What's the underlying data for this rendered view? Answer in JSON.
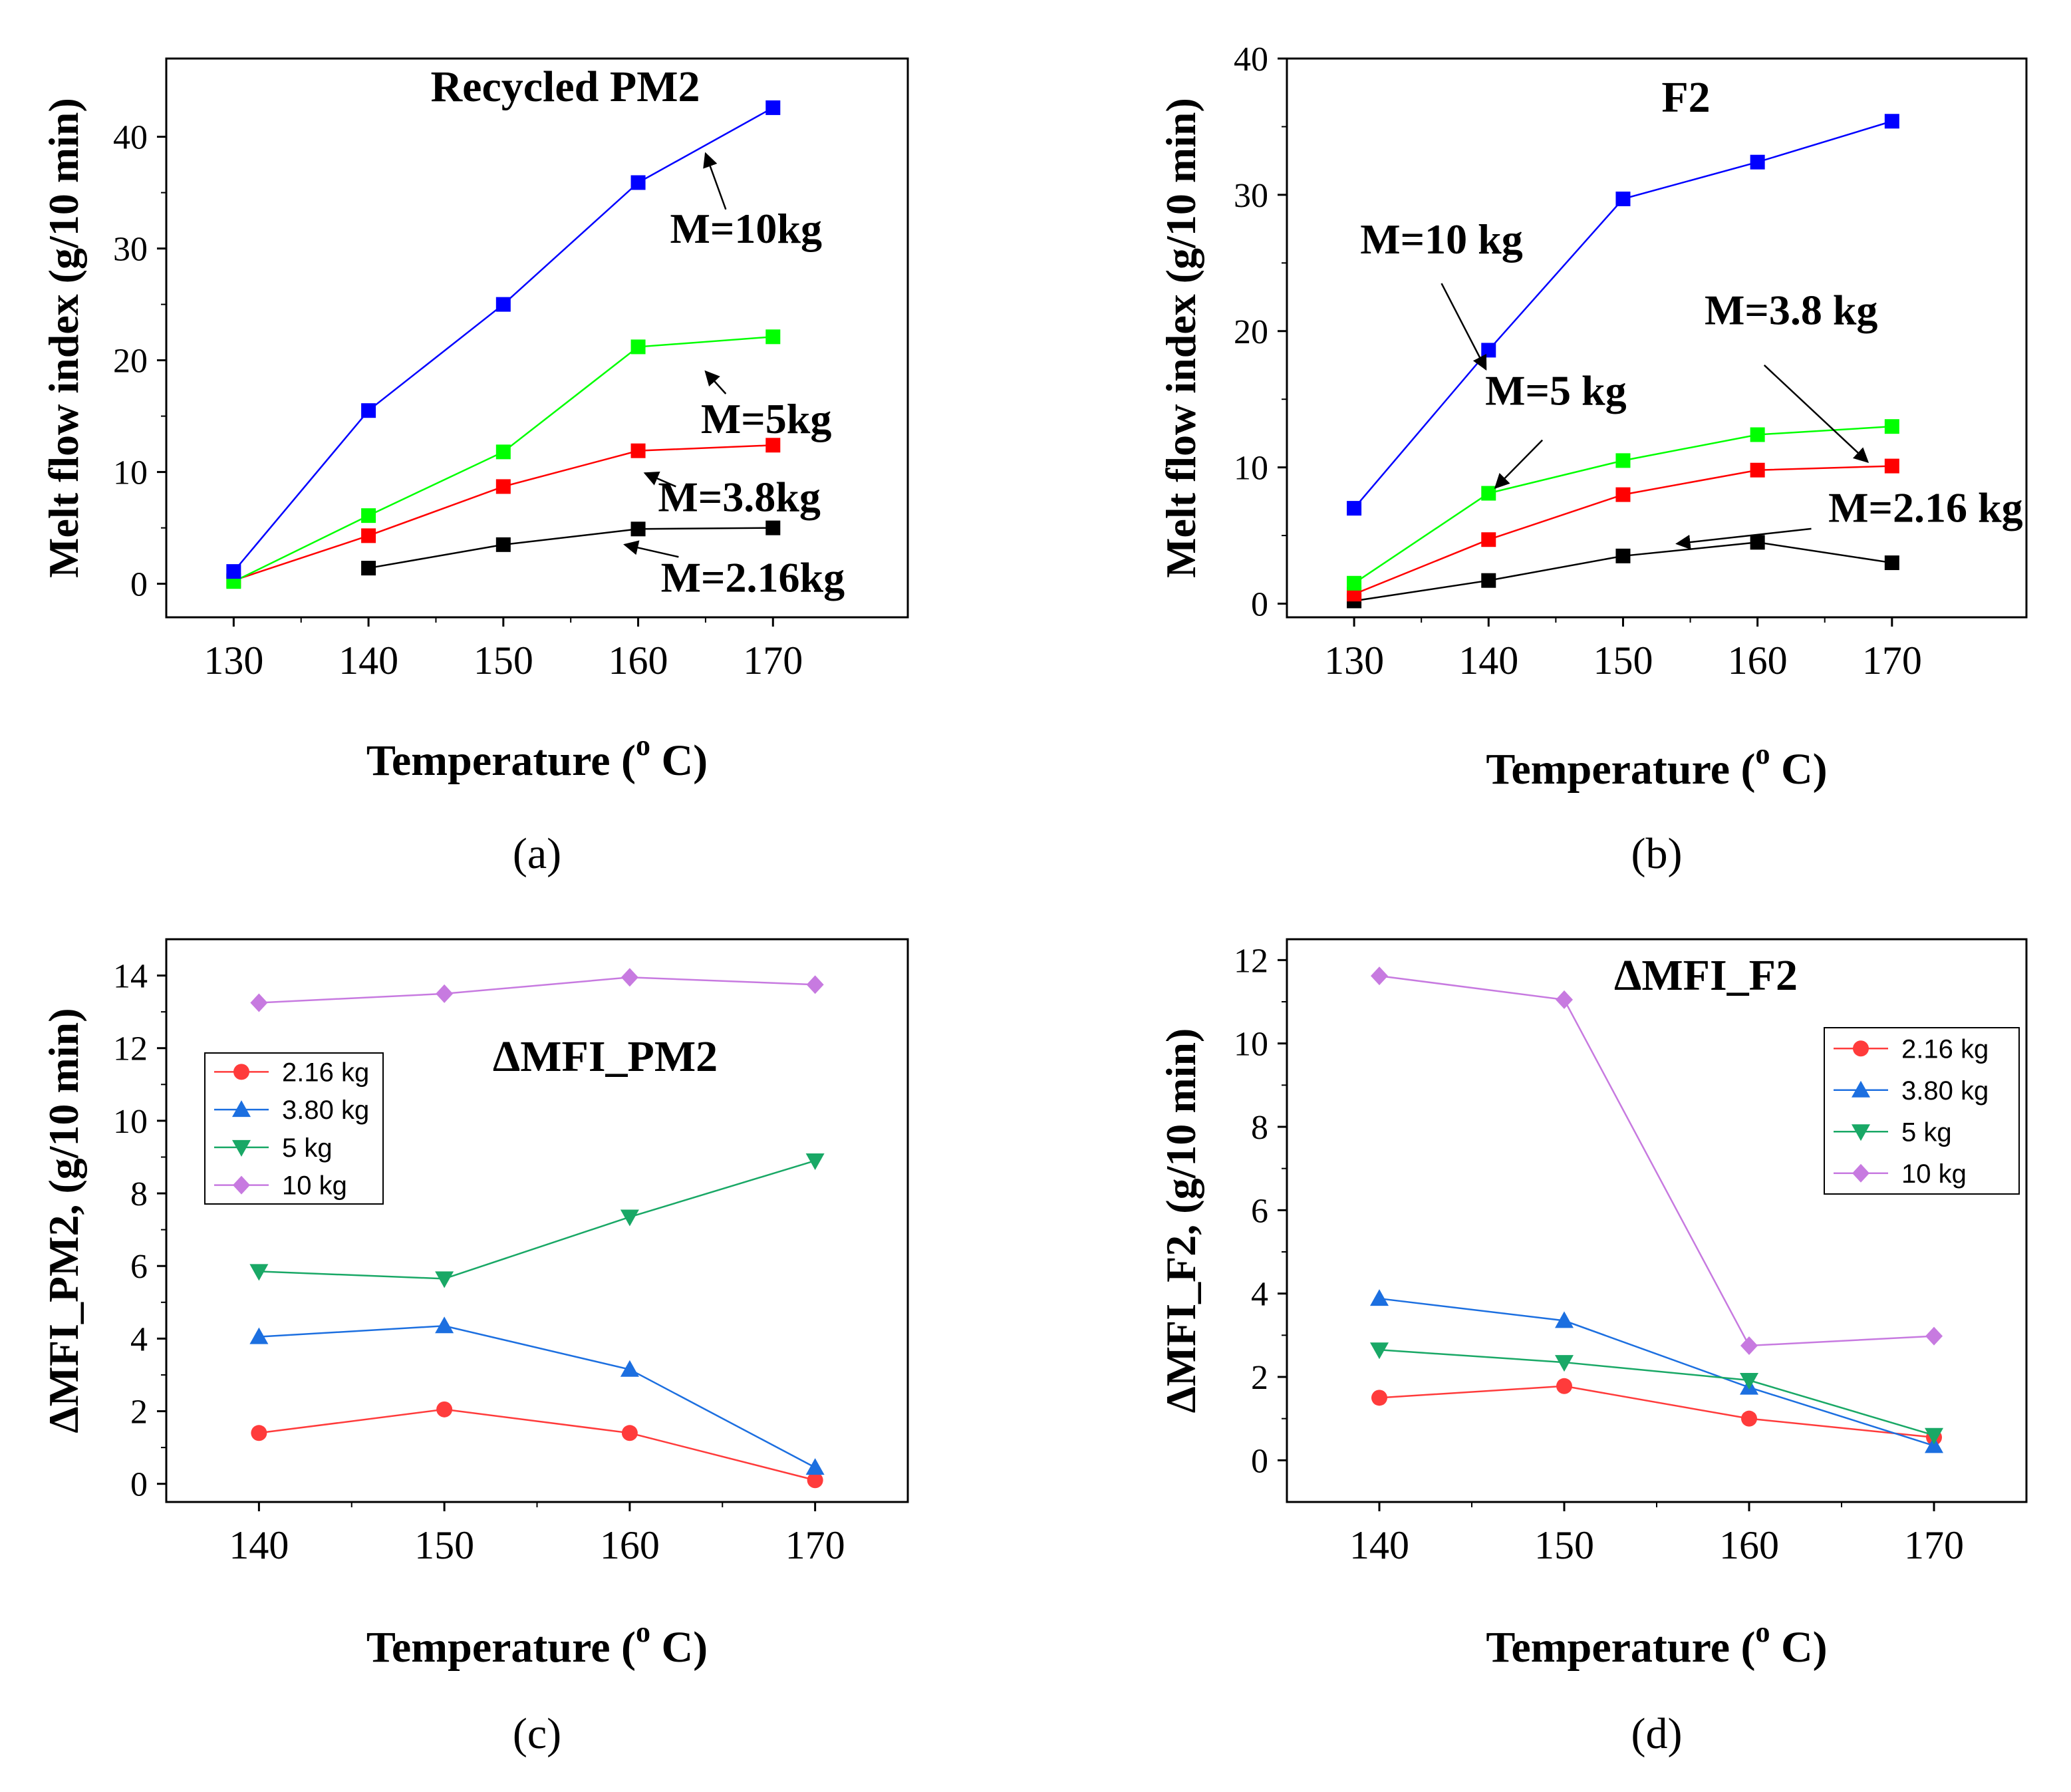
{
  "figure": {
    "panels": [
      {
        "id": "a",
        "label": "(a)"
      },
      {
        "id": "b",
        "label": "(b)"
      },
      {
        "id": "c",
        "label": "(c)"
      },
      {
        "id": "d",
        "label": "(d)"
      }
    ]
  },
  "chart_data": [
    {
      "id": "a",
      "type": "line",
      "title": "Recycled PM2",
      "panel_label": "(a)",
      "xlabel": "Temperature (",
      "xlabel_sup": "o",
      "xlabel_end": " C)",
      "ylabel": "Melt flow index (g/10 min)",
      "xlim": [
        125,
        180
      ],
      "ylim": [
        -3,
        47
      ],
      "x_ticks": [
        130,
        140,
        150,
        160,
        170
      ],
      "y_ticks": [
        0,
        10,
        20,
        30,
        40
      ],
      "x": [
        130,
        140,
        150,
        160,
        170
      ],
      "series": [
        {
          "name": "M=2.16kg",
          "color": "#000000",
          "marker": "square",
          "x": [
            140,
            150,
            160,
            170
          ],
          "values": [
            1.4,
            3.5,
            4.9,
            5.0
          ]
        },
        {
          "name": "M=3.8kg",
          "color": "#ff0000",
          "marker": "square",
          "x": [
            130,
            140,
            150,
            160,
            170
          ],
          "values": [
            0.3,
            4.3,
            8.7,
            11.9,
            12.4
          ]
        },
        {
          "name": "M=5kg",
          "color": "#00ff00",
          "marker": "square",
          "x": [
            130,
            140,
            150,
            160,
            170
          ],
          "values": [
            0.2,
            6.1,
            11.8,
            21.2,
            22.1
          ]
        },
        {
          "name": "M=10kg",
          "color": "#0000ff",
          "marker": "square",
          "x": [
            130,
            140,
            150,
            160,
            170
          ],
          "values": [
            1.1,
            15.5,
            25.0,
            35.9,
            42.6
          ]
        }
      ],
      "annotations": [
        {
          "text": "M=10kg",
          "tx": 168,
          "ty": 30.5,
          "ax1": 166.5,
          "ay1": 33.5,
          "ax2": 165,
          "ay2": 38.5
        },
        {
          "text": "M=5kg",
          "tx": 169.5,
          "ty": 13.5,
          "ax1": 166.5,
          "ay1": 17.0,
          "ax2": 165,
          "ay2": 19.0
        },
        {
          "text": "M=3.8kg",
          "tx": 167.5,
          "ty": 6.5,
          "ax1": 162.8,
          "ay1": 8.7,
          "ax2": 160.5,
          "ay2": 9.9
        },
        {
          "text": "M=2.16kg",
          "tx": 168.5,
          "ty": -0.7,
          "ax1": 163.0,
          "ay1": 2.4,
          "ax2": 159.0,
          "ay2": 3.5
        }
      ]
    },
    {
      "id": "b",
      "type": "line",
      "title": "F2",
      "panel_label": "(b)",
      "xlabel": "Temperature (",
      "xlabel_sup": "o",
      "xlabel_end": " C)",
      "ylabel": "Melt flow index (g/10 min)",
      "xlim": [
        125,
        180
      ],
      "ylim": [
        -1,
        40
      ],
      "x_ticks": [
        130,
        140,
        150,
        160,
        170
      ],
      "y_ticks": [
        0,
        10,
        20,
        30,
        40
      ],
      "x": [
        130,
        140,
        150,
        160,
        170
      ],
      "series": [
        {
          "name": "M=2.16 kg",
          "color": "#000000",
          "marker": "square",
          "x": [
            130,
            140,
            150,
            160,
            170
          ],
          "values": [
            0.2,
            1.7,
            3.5,
            4.5,
            3.0
          ]
        },
        {
          "name": "M=3.8 kg",
          "color": "#ff0000",
          "marker": "square",
          "x": [
            130,
            140,
            150,
            160,
            170
          ],
          "values": [
            0.7,
            4.7,
            8.0,
            9.8,
            10.1
          ]
        },
        {
          "name": "M=5 kg",
          "color": "#00ff00",
          "marker": "square",
          "x": [
            130,
            140,
            150,
            160,
            170
          ],
          "values": [
            1.5,
            8.1,
            10.5,
            12.4,
            13.0
          ]
        },
        {
          "name": "M=10 kg",
          "color": "#0000ff",
          "marker": "square",
          "x": [
            130,
            140,
            150,
            160,
            170
          ],
          "values": [
            7.0,
            18.6,
            29.7,
            32.4,
            35.4
          ]
        }
      ],
      "annotations": [
        {
          "text": "M=10 kg",
          "tx": 136.5,
          "ty": 25.7,
          "ax1": 136.5,
          "ay1": 23.5,
          "ax2": 139.8,
          "ay2": 17.2
        },
        {
          "text": "M=5 kg",
          "tx": 145.0,
          "ty": 14.6,
          "ax1": 144.0,
          "ay1": 12.0,
          "ax2": 140.5,
          "ay2": 8.5
        },
        {
          "text": "M=3.8 kg",
          "tx": 162.5,
          "ty": 20.5,
          "ax1": 160.5,
          "ay1": 17.5,
          "ax2": 168.2,
          "ay2": 10.4
        },
        {
          "text": "M=2.16 kg",
          "tx": 172.5,
          "ty": 6.0,
          "ax1": 164.0,
          "ay1": 5.5,
          "ax2": 154.0,
          "ay2": 4.4
        }
      ]
    },
    {
      "id": "c",
      "type": "line",
      "title": "ΔMFI_PM2",
      "panel_label": "(c)",
      "xlabel": "Temperature (",
      "xlabel_sup": "o",
      "xlabel_end": " C)",
      "ylabel": "ΔMFI_PM2, (g/10 min)",
      "xlim": [
        135,
        175
      ],
      "ylim": [
        -0.5,
        15
      ],
      "x_ticks": [
        140,
        150,
        160,
        170
      ],
      "y_ticks": [
        0,
        2,
        4,
        6,
        8,
        10,
        12,
        14
      ],
      "x": [
        140,
        150,
        160,
        170
      ],
      "series": [
        {
          "name": "2.16 kg",
          "color": "#ff3b3b",
          "marker": "circle",
          "values": [
            1.4,
            2.05,
            1.4,
            0.1
          ]
        },
        {
          "name": "3.80 kg",
          "color": "#1c6fe0",
          "marker": "triangle-up",
          "values": [
            4.05,
            4.35,
            3.15,
            0.45
          ]
        },
        {
          "name": "5 kg",
          "color": "#19a866",
          "marker": "triangle-down",
          "values": [
            5.85,
            5.65,
            7.35,
            8.9
          ]
        },
        {
          "name": "10 kg",
          "color": "#c77ae0",
          "marker": "diamond",
          "values": [
            13.25,
            13.5,
            13.95,
            13.75
          ]
        }
      ],
      "legend": {
        "position": "upper-left",
        "entries": [
          "2.16 kg",
          "3.80 kg",
          "5 kg",
          "10 kg"
        ]
      }
    },
    {
      "id": "d",
      "type": "line",
      "title": "ΔMFI_F2",
      "panel_label": "(d)",
      "xlabel": "Temperature (",
      "xlabel_sup": "o",
      "xlabel_end": " C)",
      "ylabel": "ΔMFI_F2, (g/10 min)",
      "xlim": [
        135,
        175
      ],
      "ylim": [
        -1,
        12.5
      ],
      "x_ticks": [
        140,
        150,
        160,
        170
      ],
      "y_ticks": [
        0,
        2,
        4,
        6,
        8,
        10,
        12
      ],
      "x": [
        140,
        150,
        160,
        170
      ],
      "series": [
        {
          "name": "2.16 kg",
          "color": "#ff3b3b",
          "marker": "circle",
          "values": [
            1.5,
            1.78,
            1.0,
            0.55
          ]
        },
        {
          "name": "3.80 kg",
          "color": "#1c6fe0",
          "marker": "triangle-up",
          "values": [
            3.88,
            3.35,
            1.75,
            0.35
          ]
        },
        {
          "name": "5 kg",
          "color": "#19a866",
          "marker": "triangle-down",
          "values": [
            2.65,
            2.35,
            1.92,
            0.6
          ]
        },
        {
          "name": "10 kg",
          "color": "#c77ae0",
          "marker": "diamond",
          "values": [
            11.62,
            11.05,
            2.75,
            2.98
          ]
        }
      ],
      "legend": {
        "position": "upper-right",
        "entries": [
          "2.16 kg",
          "3.80 kg",
          "5 kg",
          "10 kg"
        ]
      }
    }
  ]
}
